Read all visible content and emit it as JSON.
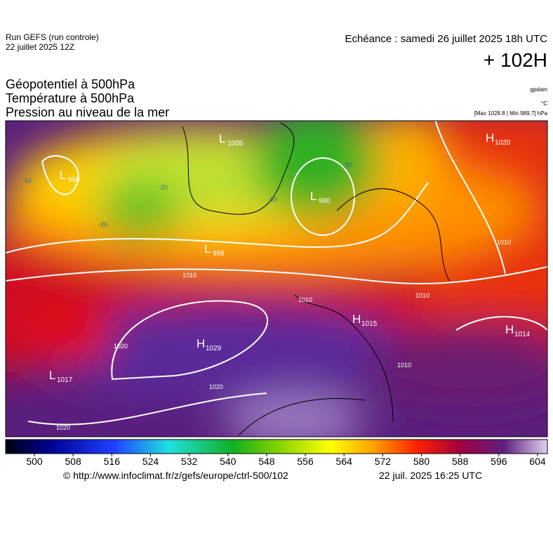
{
  "header": {
    "run": "Run GEFS (run controle)",
    "date": "22 juillet 2025 12Z",
    "echeance": "Echéance : samedi 26 juillet 2025 18h UTC",
    "lead": "+ 102H"
  },
  "titles": [
    "Géopotentiel à 500hPa",
    "Température à 500hPa",
    "Pression au niveau de la mer"
  ],
  "units": [
    "gpdam",
    "°C"
  ],
  "stats": "[Max 1028.8 | Min 989.7] hPa",
  "pressure_centers": [
    {
      "type": "L",
      "value": "996"
    },
    {
      "type": "L",
      "value": "1005"
    },
    {
      "type": "L",
      "value": "990"
    },
    {
      "type": "L",
      "value": "998"
    },
    {
      "type": "H",
      "value": "1020"
    },
    {
      "type": "H",
      "value": "1029"
    },
    {
      "type": "L",
      "value": "1017"
    },
    {
      "type": "H",
      "value": "1015"
    },
    {
      "type": "H",
      "value": "1014"
    }
  ],
  "isobar_labels": [
    "1010",
    "1010",
    "1020",
    "1020",
    "1020",
    "1010",
    "1010",
    "1010"
  ],
  "temperature_labels": [
    "-20",
    "-20",
    "-20",
    "-20",
    "-10"
  ],
  "colorbar": {
    "ticks": [
      500,
      508,
      516,
      524,
      532,
      540,
      548,
      556,
      564,
      572,
      580,
      588,
      596,
      604
    ]
  },
  "footer": {
    "source": "© http://www.infoclimat.fr/z/gefs/europe/ctrl-500/102",
    "generated": "22 juil. 2025 16:25 UTC"
  }
}
